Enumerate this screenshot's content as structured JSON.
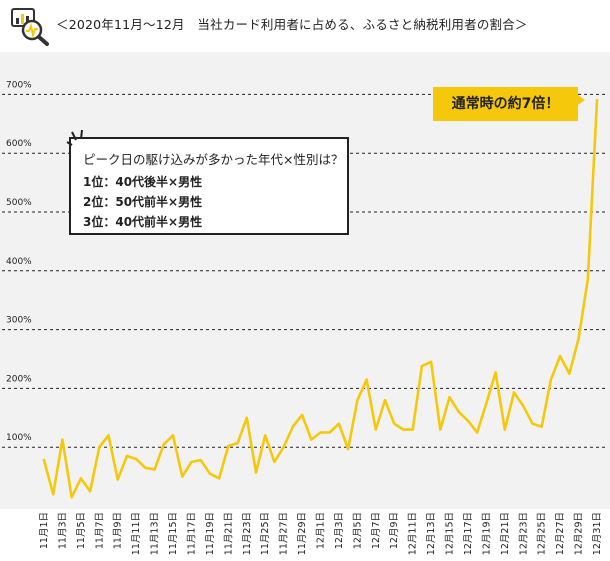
{
  "header": {
    "title": "＜2020年11月〜12月　当社カード利用者に占める、ふるさと納税利用者の割合＞"
  },
  "callout": {
    "title": "ピーク日の駆け込みが多かった年代×性別は？",
    "ranks": [
      "1位：40代後半×男性",
      "2位：50代前半×男性",
      "3位：40代前半×男性"
    ]
  },
  "peak_badge": "通常時の約7倍！",
  "colors": {
    "line": "#f6c80b",
    "plot_bg": "#f2f2f2",
    "grid": "#222222",
    "badge": "#f6c80b"
  },
  "chart_data": {
    "type": "line",
    "title": "＜2020年11月〜12月　当社カード利用者に占める、ふるさと納税利用者の割合＞",
    "xlabel": "",
    "ylabel": "",
    "ylim": [
      0,
      700
    ],
    "yticks": [
      "100%",
      "200%",
      "300%",
      "400%",
      "500%",
      "600%",
      "700%"
    ],
    "ytick_values": [
      100,
      200,
      300,
      400,
      500,
      600,
      700
    ],
    "grid": "horizontal dashed",
    "x_tick_labels": [
      "11月1日",
      "11月3日",
      "11月5日",
      "11月7日",
      "11月9日",
      "11月11日",
      "11月13日",
      "11月15日",
      "11月17日",
      "11月19日",
      "11月21日",
      "11月23日",
      "11月25日",
      "11月27日",
      "11月29日",
      "12月1日",
      "12月3日",
      "12月5日",
      "12月7日",
      "12月9日",
      "12月11日",
      "12月13日",
      "12月15日",
      "12月17日",
      "12月19日",
      "12月21日",
      "12月23日",
      "12月25日",
      "12月27日",
      "12月29日",
      "12月31日"
    ],
    "series": [
      {
        "values": [
          78,
          20,
          113,
          15,
          47,
          25,
          100,
          120,
          45,
          85,
          80,
          65,
          62,
          105,
          120,
          50,
          75,
          78,
          55,
          47,
          102,
          107,
          150,
          57,
          120,
          75,
          100,
          135,
          155,
          113,
          125,
          125,
          140,
          97,
          180,
          215,
          130,
          180,
          140,
          130,
          130,
          238,
          245,
          130,
          185,
          160,
          145,
          125,
          175,
          227,
          130,
          193,
          170,
          140,
          135,
          215,
          255,
          225,
          285,
          385,
          690
        ]
      }
    ]
  }
}
